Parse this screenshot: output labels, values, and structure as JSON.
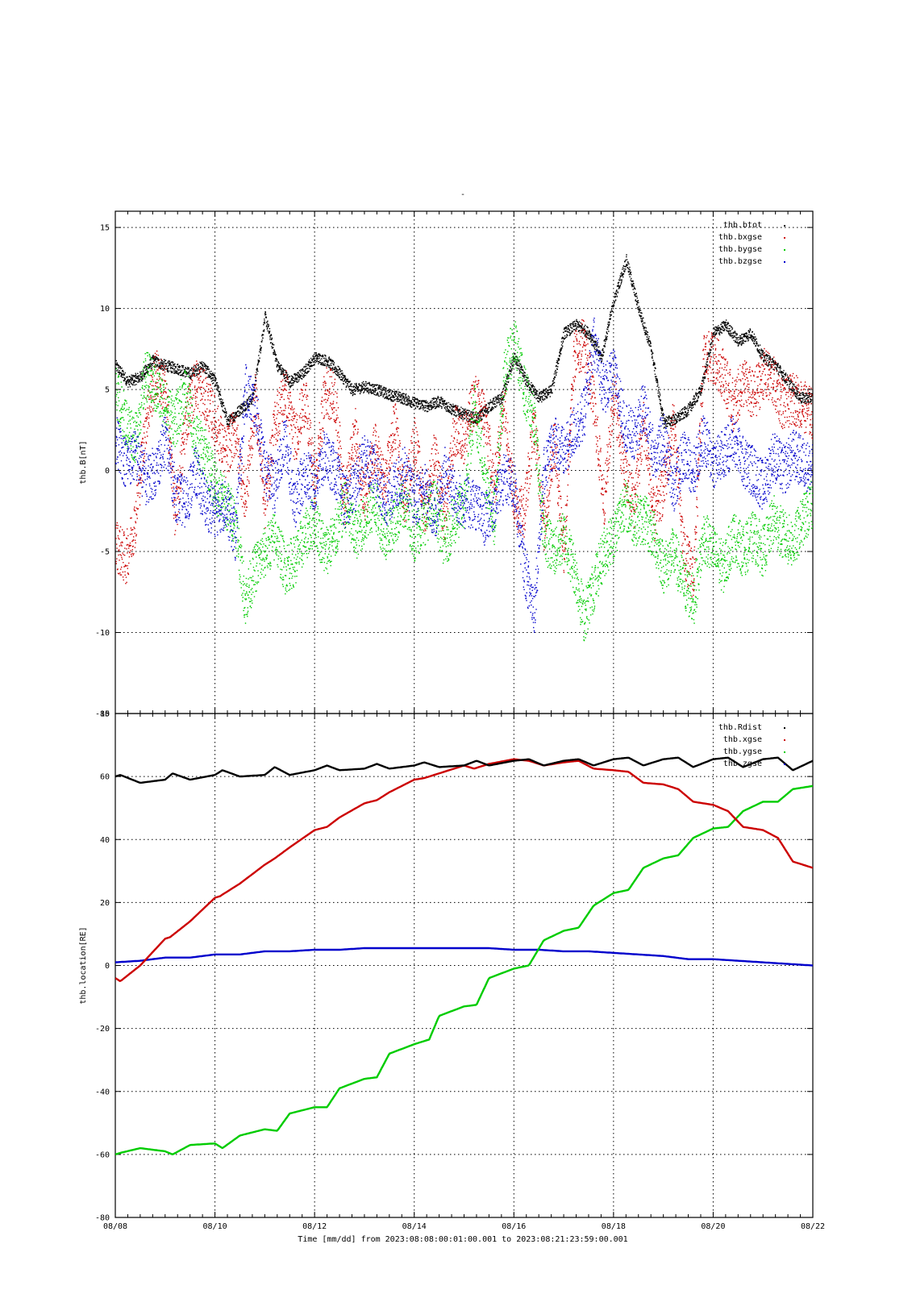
{
  "figure": {
    "title": "-",
    "time_label": "Time [mm/dd]  from 2023:08:08:00:01:00.001  to  2023:08:21:23:59:00.001"
  },
  "chart_data": [
    {
      "type": "scatter",
      "title": "-",
      "xlabel": "",
      "ylabel": "thb.B[nT]",
      "xlim": [
        0,
        14
      ],
      "ylim": [
        -15,
        16
      ],
      "yticks": [
        -15,
        -10,
        -5,
        0,
        5,
        10,
        15
      ],
      "ytick_labels": [
        "-15",
        "-10",
        "-5",
        "0",
        "5",
        "10",
        "15"
      ],
      "grid": true,
      "legend_position": "top-right",
      "x_unit": "days since 08/08 00:00",
      "series": [
        {
          "name": "thb.btot",
          "color": "#000000",
          "x": [
            0,
            0.25,
            0.5,
            0.75,
            1,
            1.25,
            1.5,
            1.75,
            2,
            2.25,
            2.5,
            2.75,
            3,
            3.25,
            3.5,
            3.75,
            4,
            4.25,
            4.5,
            4.75,
            5,
            5.25,
            5.5,
            5.75,
            6,
            6.25,
            6.5,
            6.75,
            7,
            7.25,
            7.5,
            7.75,
            8,
            8.25,
            8.5,
            8.75,
            9,
            9.25,
            9.5,
            9.75,
            10,
            10.25,
            10.5,
            10.75,
            11,
            11.25,
            11.5,
            11.75,
            12,
            12.25,
            12.5,
            12.75,
            13,
            13.25,
            13.5,
            13.75,
            14
          ],
          "y": [
            6.5,
            5.5,
            5.8,
            6.8,
            6.5,
            6.3,
            6,
            6.5,
            5.5,
            3,
            3.8,
            4.5,
            9.5,
            6.5,
            5.5,
            6,
            7,
            6.8,
            6,
            5,
            5.2,
            5,
            4.7,
            4.5,
            4.2,
            4,
            4.3,
            3.8,
            3.5,
            3.2,
            4,
            4.5,
            7,
            5.5,
            4.5,
            5,
            8.5,
            9,
            8.5,
            7,
            10.5,
            13,
            10,
            7.5,
            3,
            3.2,
            3.8,
            5,
            8.5,
            9,
            8,
            8.5,
            7,
            6.5,
            5.5,
            4.5,
            4.5
          ]
        },
        {
          "name": "thb.bxgse",
          "color": "#cc0000",
          "x": [
            0,
            0.2,
            0.4,
            0.6,
            0.8,
            1,
            1.2,
            1.4,
            1.6,
            1.8,
            2,
            2.2,
            2.4,
            2.6,
            2.8,
            3,
            3.2,
            3.4,
            3.6,
            3.8,
            4,
            4.2,
            4.4,
            4.6,
            4.8,
            5,
            5.2,
            5.4,
            5.6,
            5.8,
            6,
            6.2,
            6.4,
            6.6,
            6.8,
            7,
            7.2,
            7.4,
            7.6,
            7.8,
            8,
            8.2,
            8.4,
            8.6,
            8.8,
            9,
            9.2,
            9.4,
            9.6,
            9.8,
            10,
            10.2,
            10.4,
            10.6,
            10.8,
            11,
            11.2,
            11.4,
            11.6,
            11.8,
            12,
            12.2,
            12.4,
            12.6,
            12.8,
            13,
            13.2,
            13.4,
            13.6,
            13.8,
            14
          ],
          "y": [
            -4.5,
            -5.5,
            -3,
            3,
            6,
            5,
            -3,
            3,
            5.5,
            4.5,
            3,
            1,
            2.5,
            -2,
            4.5,
            -2,
            3,
            5,
            2,
            4.5,
            -1,
            5,
            4.5,
            -2,
            2.5,
            -2,
            1.5,
            -1,
            3,
            -2,
            2,
            -2.5,
            1,
            -3,
            2.5,
            2,
            4.5,
            3.5,
            -1,
            4.5,
            -2,
            -2.5,
            3,
            -3.5,
            2,
            -5,
            7,
            8,
            4,
            -2,
            5,
            0,
            -2,
            3,
            -3,
            -1,
            3,
            -5,
            -6.5,
            7,
            7,
            6,
            4,
            5.5,
            4.5,
            6,
            5.5,
            4,
            4.5,
            4,
            3.5
          ]
        },
        {
          "name": "thb.bygse",
          "color": "#00cc00",
          "x": [
            0,
            0.2,
            0.4,
            0.6,
            0.8,
            1,
            1.2,
            1.4,
            1.6,
            1.8,
            2,
            2.2,
            2.4,
            2.6,
            2.8,
            3,
            3.2,
            3.4,
            3.6,
            3.8,
            4,
            4.2,
            4.4,
            4.6,
            4.8,
            5,
            5.2,
            5.4,
            5.6,
            5.8,
            6,
            6.2,
            6.4,
            6.6,
            6.8,
            7,
            7.2,
            7.4,
            7.6,
            7.8,
            8,
            8.2,
            8.4,
            8.6,
            8.8,
            9,
            9.2,
            9.4,
            9.6,
            9.8,
            10,
            10.2,
            10.4,
            10.6,
            10.8,
            11,
            11.2,
            11.4,
            11.6,
            11.8,
            12,
            12.2,
            12.4,
            12.6,
            12.8,
            13,
            13.2,
            13.4,
            13.6,
            13.8,
            14
          ],
          "y": [
            5,
            3,
            2,
            6,
            5,
            4,
            3,
            5,
            2,
            1,
            -1,
            -2,
            -3,
            -8,
            -6,
            -5,
            -4,
            -6,
            -5.5,
            -4,
            -3,
            -5,
            -4,
            -2,
            -4,
            -3,
            -2,
            -4,
            -3,
            -2,
            -4,
            -3,
            -2,
            -4.5,
            -3,
            -2,
            4,
            0,
            -3,
            6,
            8,
            5,
            3,
            -4,
            -5,
            -4,
            -6,
            -9,
            -7,
            -5,
            -4,
            -2,
            -3,
            -3,
            -4,
            -6,
            -5,
            -7,
            -8,
            -4,
            -5,
            -6,
            -4,
            -5,
            -4,
            -5,
            -3,
            -4,
            -4.5,
            -3,
            -2
          ]
        },
        {
          "name": "thb.bzgse",
          "color": "#0000cc",
          "x": [
            0,
            0.2,
            0.4,
            0.6,
            0.8,
            1,
            1.2,
            1.4,
            1.6,
            1.8,
            2,
            2.2,
            2.4,
            2.6,
            2.8,
            3,
            3.2,
            3.4,
            3.6,
            3.8,
            4,
            4.2,
            4.4,
            4.6,
            4.8,
            5,
            5.2,
            5.4,
            5.6,
            5.8,
            6,
            6.2,
            6.4,
            6.6,
            6.8,
            7,
            7.2,
            7.4,
            7.6,
            7.8,
            8,
            8.2,
            8.4,
            8.6,
            8.8,
            9,
            9.2,
            9.4,
            9.6,
            9.8,
            10,
            10.2,
            10.4,
            10.6,
            10.8,
            11,
            11.2,
            11.4,
            11.6,
            11.8,
            12,
            12.2,
            12.4,
            12.6,
            12.8,
            13,
            13.2,
            13.4,
            13.6,
            13.8,
            14
          ],
          "y": [
            2,
            0.5,
            1,
            -0.5,
            0,
            2,
            -1.5,
            -2,
            0,
            -2,
            -2.5,
            -2,
            -4,
            5,
            4,
            0,
            -1,
            2,
            -2,
            0,
            -1,
            1,
            0,
            -2,
            -1,
            1,
            0,
            -2,
            -1,
            0,
            -2,
            -1,
            -3,
            0,
            -1.5,
            -2,
            -2,
            -3,
            -2,
            -0.5,
            -1,
            -6,
            -8.5,
            0,
            2,
            1,
            2.5,
            3.5,
            8,
            5,
            6,
            3,
            2,
            4,
            1,
            2,
            -1,
            1,
            0,
            2,
            0.5,
            1,
            2,
            0.5,
            0,
            -1,
            1,
            0,
            1,
            0.5,
            0
          ]
        }
      ]
    },
    {
      "type": "line",
      "title": "",
      "xlabel": "Time [mm/dd]",
      "ylabel": "thb.location[RE]",
      "xlim": [
        0,
        14
      ],
      "ylim": [
        -80,
        80
      ],
      "xticks": [
        "08/08",
        "08/10",
        "08/12",
        "08/14",
        "08/16",
        "08/18",
        "08/20",
        "08/22"
      ],
      "yticks": [
        -80,
        -60,
        -40,
        -20,
        0,
        20,
        40,
        60,
        80
      ],
      "ytick_labels": [
        "-80",
        "-60",
        "-40",
        "-20",
        "0",
        "20",
        "40",
        "60",
        "80"
      ],
      "grid": true,
      "legend_position": "top-right",
      "x_unit": "days since 08/08 00:00",
      "series": [
        {
          "name": "thb.Rdist",
          "color": "#000000",
          "x": [
            0,
            0.1,
            0.5,
            1,
            1.15,
            1.5,
            2,
            2.15,
            2.5,
            3,
            3.2,
            3.5,
            4,
            4.25,
            4.5,
            5,
            5.25,
            5.5,
            6,
            6.2,
            6.5,
            7,
            7.25,
            7.5,
            8,
            8.3,
            8.6,
            9,
            9.3,
            9.6,
            10,
            10.3,
            10.6,
            11,
            11.3,
            11.6,
            12,
            12.3,
            12.6,
            13,
            13.3,
            13.6,
            14
          ],
          "y": [
            60,
            60.5,
            58,
            59,
            61,
            59,
            60.5,
            62,
            60,
            60.5,
            63,
            60.5,
            62,
            63.5,
            62,
            62.5,
            64,
            62.5,
            63.5,
            64.5,
            63,
            63.5,
            65,
            63.5,
            65,
            65.5,
            63.5,
            65,
            65.5,
            63.5,
            65.5,
            66,
            63.5,
            65.5,
            66,
            63,
            65.5,
            66,
            63,
            65.5,
            66,
            62,
            65
          ]
        },
        {
          "name": "thb.xgse",
          "color": "#cc0000",
          "x": [
            0,
            0.1,
            0.5,
            1,
            1.1,
            1.5,
            2,
            2.1,
            2.5,
            3,
            3.2,
            3.5,
            4,
            4.25,
            4.5,
            5,
            5.25,
            5.5,
            6,
            6.2,
            6.5,
            7,
            7.2,
            7.5,
            8,
            8.3,
            8.6,
            9,
            9.3,
            9.6,
            10,
            10.3,
            10.6,
            11,
            11.3,
            11.6,
            12,
            12.3,
            12.6,
            13,
            13.3,
            13.6,
            14
          ],
          "y": [
            -4,
            -5,
            0,
            8.5,
            9,
            14,
            21.5,
            22,
            26,
            32,
            34,
            37.5,
            43,
            44,
            47,
            51.5,
            52.5,
            55,
            59,
            59.5,
            61,
            63.5,
            62.5,
            64,
            65.5,
            65,
            63.5,
            64.5,
            65,
            62.5,
            62,
            61.5,
            58,
            57.5,
            56,
            52,
            51,
            49,
            44,
            43,
            40.5,
            33,
            31
          ]
        },
        {
          "name": "thb.ygse",
          "color": "#00cc00",
          "x": [
            0,
            0.1,
            0.5,
            1,
            1.15,
            1.5,
            2,
            2.15,
            2.5,
            3,
            3.25,
            3.5,
            4,
            4.25,
            4.5,
            5,
            5.25,
            5.5,
            6,
            6.3,
            6.5,
            7,
            7.25,
            7.5,
            8,
            8.3,
            8.6,
            9,
            9.3,
            9.6,
            10,
            10.3,
            10.6,
            11,
            11.3,
            11.6,
            12,
            12.3,
            12.6,
            13,
            13.3,
            13.6,
            14
          ],
          "y": [
            -60,
            -59.5,
            -58,
            -59,
            -60,
            -57,
            -56.5,
            -58,
            -54,
            -52,
            -52.5,
            -47,
            -45,
            -45,
            -39,
            -36,
            -35.5,
            -28,
            -25,
            -23.5,
            -16,
            -13,
            -12.5,
            -4,
            -1,
            0,
            8,
            11,
            12,
            19,
            23,
            24,
            31,
            34,
            35,
            40.5,
            43.5,
            44,
            49,
            52,
            52,
            56,
            57
          ]
        },
        {
          "name": "thb.zgse",
          "color": "#0000cc",
          "x": [
            0,
            0.5,
            1,
            1.5,
            2,
            2.5,
            3,
            3.5,
            4,
            4.5,
            5,
            5.5,
            6,
            6.5,
            7,
            7.5,
            8,
            8.5,
            9,
            9.5,
            10,
            10.5,
            11,
            11.5,
            12,
            12.5,
            13,
            13.5,
            14
          ],
          "y": [
            1,
            1.5,
            2.5,
            2.5,
            3.5,
            3.5,
            4.5,
            4.5,
            5,
            5,
            5.5,
            5.5,
            5.5,
            5.5,
            5.5,
            5.5,
            5,
            5,
            4.5,
            4.5,
            4,
            3.5,
            3,
            2,
            2,
            1.5,
            1,
            0.5,
            0
          ]
        }
      ]
    }
  ]
}
